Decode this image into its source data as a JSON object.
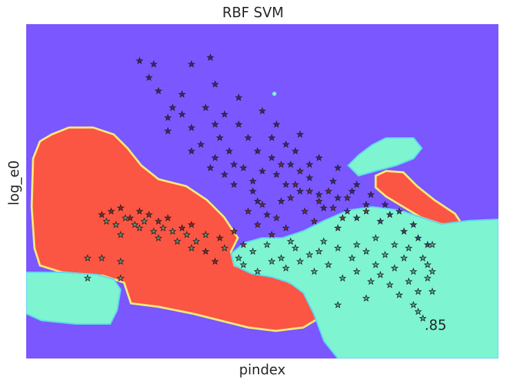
{
  "chart_data": {
    "type": "scatter",
    "title": "RBF SVM",
    "xlabel": "pindex",
    "ylabel": "log_e0",
    "xticks": [],
    "yticks": [],
    "grid": false,
    "legend": "none",
    "background": "decision regions of an RBF SVM classifier (three classes)",
    "annotations": [
      {
        "text": ".85",
        "x": 0.87,
        "y": 0.1
      }
    ],
    "xlim": [
      0,
      1
    ],
    "ylim": [
      0,
      1
    ],
    "colors": {
      "region_top": "#7a57fe",
      "region_middle": "#fb5543",
      "region_bottom": "#7ef4d0",
      "region_edge": "#f6e87a",
      "class_0": "#2a1a6e",
      "class_1": "#7a1a22",
      "class_2": "#3fa57a",
      "marker_edge": "#222222"
    },
    "marker": "star",
    "series": [
      {
        "points": [
          [
            0.24,
            0.89
          ],
          [
            0.27,
            0.88
          ],
          [
            0.35,
            0.88
          ],
          [
            0.39,
            0.9
          ],
          [
            0.4,
            0.82
          ],
          [
            0.33,
            0.79
          ],
          [
            0.28,
            0.8
          ],
          [
            0.3,
            0.72
          ],
          [
            0.3,
            0.68
          ],
          [
            0.33,
            0.73
          ],
          [
            0.35,
            0.69
          ],
          [
            0.38,
            0.75
          ],
          [
            0.4,
            0.7
          ],
          [
            0.42,
            0.73
          ],
          [
            0.41,
            0.66
          ],
          [
            0.45,
            0.7
          ],
          [
            0.43,
            0.62
          ],
          [
            0.47,
            0.66
          ],
          [
            0.44,
            0.58
          ],
          [
            0.49,
            0.62
          ],
          [
            0.5,
            0.56
          ],
          [
            0.48,
            0.53
          ],
          [
            0.52,
            0.6
          ],
          [
            0.53,
            0.55
          ],
          [
            0.55,
            0.52
          ],
          [
            0.56,
            0.58
          ],
          [
            0.58,
            0.5
          ],
          [
            0.6,
            0.54
          ],
          [
            0.62,
            0.49
          ],
          [
            0.63,
            0.45
          ],
          [
            0.66,
            0.48
          ],
          [
            0.68,
            0.44
          ],
          [
            0.7,
            0.42
          ],
          [
            0.72,
            0.46
          ],
          [
            0.75,
            0.41
          ],
          [
            0.77,
            0.43
          ],
          [
            0.8,
            0.38
          ],
          [
            0.82,
            0.4
          ],
          [
            0.57,
            0.62
          ],
          [
            0.6,
            0.58
          ],
          [
            0.46,
            0.57
          ],
          [
            0.52,
            0.66
          ],
          [
            0.55,
            0.64
          ],
          [
            0.4,
            0.6
          ],
          [
            0.37,
            0.64
          ],
          [
            0.54,
            0.47
          ],
          [
            0.51,
            0.43
          ],
          [
            0.49,
            0.47
          ],
          [
            0.65,
            0.53
          ],
          [
            0.69,
            0.5
          ],
          [
            0.35,
            0.62
          ],
          [
            0.31,
            0.75
          ],
          [
            0.26,
            0.84
          ],
          [
            0.45,
            0.78
          ],
          [
            0.5,
            0.74
          ],
          [
            0.53,
            0.7
          ],
          [
            0.58,
            0.67
          ],
          [
            0.62,
            0.6
          ],
          [
            0.66,
            0.57
          ],
          [
            0.7,
            0.52
          ],
          [
            0.73,
            0.49
          ],
          [
            0.76,
            0.46
          ],
          [
            0.79,
            0.44
          ],
          [
            0.83,
            0.36
          ],
          [
            0.85,
            0.34
          ],
          [
            0.48,
            0.5
          ],
          [
            0.44,
            0.52
          ],
          [
            0.42,
            0.55
          ],
          [
            0.39,
            0.57
          ]
        ]
      },
      {
        "points": [
          [
            0.16,
            0.43
          ],
          [
            0.18,
            0.44
          ],
          [
            0.2,
            0.45
          ],
          [
            0.22,
            0.42
          ],
          [
            0.24,
            0.44
          ],
          [
            0.26,
            0.43
          ],
          [
            0.28,
            0.41
          ],
          [
            0.3,
            0.42
          ],
          [
            0.33,
            0.39
          ],
          [
            0.35,
            0.4
          ],
          [
            0.41,
            0.36
          ],
          [
            0.44,
            0.38
          ],
          [
            0.47,
            0.44
          ],
          [
            0.5,
            0.46
          ],
          [
            0.53,
            0.42
          ],
          [
            0.56,
            0.48
          ],
          [
            0.59,
            0.44
          ],
          [
            0.62,
            0.47
          ],
          [
            0.65,
            0.45
          ],
          [
            0.67,
            0.42
          ],
          [
            0.57,
            0.52
          ],
          [
            0.6,
            0.5
          ],
          [
            0.46,
            0.34
          ],
          [
            0.49,
            0.4
          ],
          [
            0.52,
            0.37
          ],
          [
            0.55,
            0.39
          ],
          [
            0.64,
            0.5
          ],
          [
            0.68,
            0.48
          ],
          [
            0.72,
            0.44
          ],
          [
            0.4,
            0.29
          ],
          [
            0.38,
            0.32
          ],
          [
            0.66,
            0.39
          ],
          [
            0.61,
            0.41
          ],
          [
            0.58,
            0.56
          ],
          [
            0.54,
            0.58
          ]
        ]
      },
      {
        "points": [
          [
            0.17,
            0.41
          ],
          [
            0.19,
            0.4
          ],
          [
            0.21,
            0.42
          ],
          [
            0.23,
            0.4
          ],
          [
            0.25,
            0.41
          ],
          [
            0.27,
            0.38
          ],
          [
            0.29,
            0.39
          ],
          [
            0.31,
            0.38
          ],
          [
            0.34,
            0.37
          ],
          [
            0.36,
            0.35
          ],
          [
            0.38,
            0.37
          ],
          [
            0.42,
            0.33
          ],
          [
            0.45,
            0.3
          ],
          [
            0.48,
            0.32
          ],
          [
            0.51,
            0.34
          ],
          [
            0.54,
            0.3
          ],
          [
            0.57,
            0.33
          ],
          [
            0.6,
            0.31
          ],
          [
            0.63,
            0.35
          ],
          [
            0.66,
            0.33
          ],
          [
            0.69,
            0.3
          ],
          [
            0.72,
            0.32
          ],
          [
            0.74,
            0.28
          ],
          [
            0.76,
            0.31
          ],
          [
            0.78,
            0.27
          ],
          [
            0.8,
            0.3
          ],
          [
            0.82,
            0.26
          ],
          [
            0.84,
            0.3
          ],
          [
            0.85,
            0.24
          ],
          [
            0.83,
            0.2
          ],
          [
            0.81,
            0.23
          ],
          [
            0.79,
            0.19
          ],
          [
            0.77,
            0.22
          ],
          [
            0.75,
            0.25
          ],
          [
            0.73,
            0.23
          ],
          [
            0.7,
            0.26
          ],
          [
            0.67,
            0.24
          ],
          [
            0.64,
            0.28
          ],
          [
            0.61,
            0.26
          ],
          [
            0.58,
            0.29
          ],
          [
            0.55,
            0.27
          ],
          [
            0.52,
            0.29
          ],
          [
            0.49,
            0.26
          ],
          [
            0.46,
            0.28
          ],
          [
            0.66,
            0.16
          ],
          [
            0.72,
            0.18
          ],
          [
            0.82,
            0.16
          ],
          [
            0.2,
            0.37
          ],
          [
            0.24,
            0.39
          ],
          [
            0.28,
            0.36
          ],
          [
            0.32,
            0.35
          ],
          [
            0.35,
            0.33
          ],
          [
            0.7,
            0.34
          ],
          [
            0.74,
            0.36
          ],
          [
            0.78,
            0.34
          ],
          [
            0.81,
            0.33
          ],
          [
            0.62,
            0.32
          ],
          [
            0.56,
            0.35
          ],
          [
            0.85,
            0.28
          ],
          [
            0.86,
            0.34
          ],
          [
            0.86,
            0.2
          ],
          [
            0.86,
            0.26
          ],
          [
            0.16,
            0.3
          ],
          [
            0.2,
            0.29
          ],
          [
            0.13,
            0.3
          ],
          [
            0.13,
            0.24
          ],
          [
            0.2,
            0.24
          ],
          [
            0.83,
            0.14
          ],
          [
            0.84,
            0.12
          ]
        ]
      }
    ]
  }
}
